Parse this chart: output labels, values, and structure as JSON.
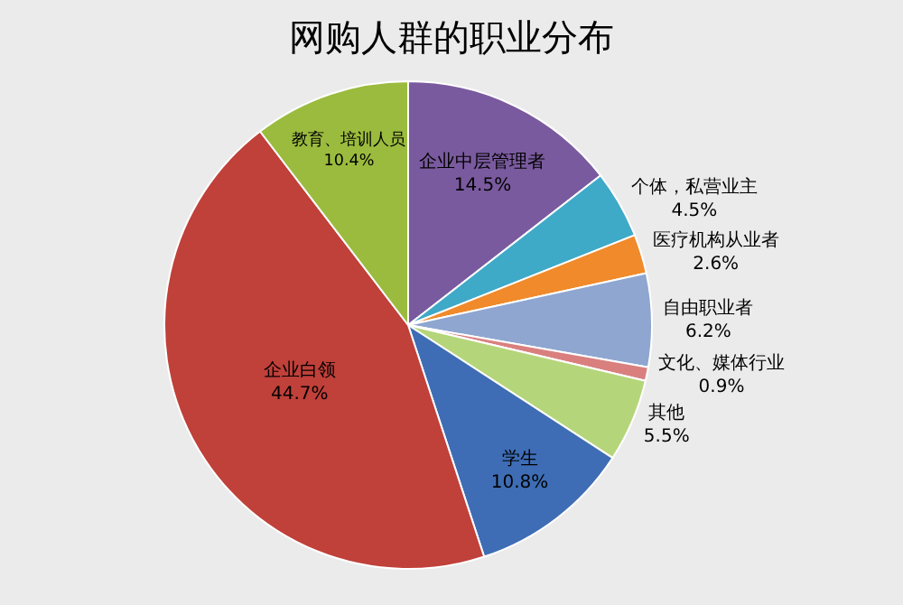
{
  "chart_data": {
    "type": "pie",
    "title": "网购人群的职业分布",
    "categories": [
      "企业中层管理者",
      "个体，私营业主",
      "医疗机构从业者",
      "自由职业者",
      "文化、媒体行业",
      "其他",
      "学生",
      "企业白领",
      "教育、培训人员"
    ],
    "values": [
      14.5,
      4.5,
      2.6,
      6.2,
      0.9,
      5.5,
      10.8,
      44.7,
      10.4
    ],
    "value_labels": [
      "14.5%",
      "4.5%",
      "2.6%",
      "6.2%",
      "0.9%",
      "5.5%",
      "10.8%",
      "44.7%",
      "10.4%"
    ],
    "colors": [
      "#7a5a9e",
      "#3fa9c8",
      "#f08a2a",
      "#8ea6d0",
      "#d9807f",
      "#b5d57a",
      "#3e6db5",
      "#c0403a",
      "#9bbb3e"
    ],
    "legend": false
  }
}
